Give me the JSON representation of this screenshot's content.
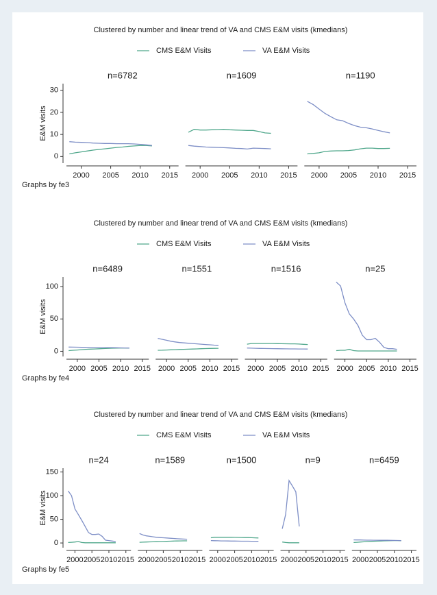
{
  "chart_data": [
    {
      "type": "line",
      "title": "Clustered by number and linear trend of VA and CMS E&M visits (kmedians)",
      "ylabel": "E&M visits",
      "note": "Graphs by fe3",
      "xlim": [
        1997.5,
        2016.5
      ],
      "xticks": [
        2000,
        2005,
        2010,
        2015
      ],
      "ylim": [
        -3,
        33
      ],
      "yticks": [
        0,
        10,
        20,
        30
      ],
      "panels": [
        {
          "title": "n=6782",
          "x": [
            1998,
            1999,
            2000,
            2001,
            2002,
            2003,
            2004,
            2005,
            2006,
            2007,
            2008,
            2009,
            2010,
            2011,
            2012
          ],
          "series": [
            {
              "name": "CMS E&M Visits",
              "color": "#4fa78b",
              "values": [
                1.2,
                1.7,
                2.1,
                2.5,
                2.9,
                3.2,
                3.5,
                3.8,
                4.1,
                4.3,
                4.6,
                4.8,
                5.0,
                5.0,
                4.8
              ]
            },
            {
              "name": "VA E&M Visits",
              "color": "#7d8ec6",
              "values": [
                6.7,
                6.5,
                6.4,
                6.3,
                6.1,
                6.0,
                5.9,
                5.9,
                5.8,
                5.8,
                5.8,
                5.7,
                5.5,
                5.3,
                5.0
              ]
            }
          ]
        },
        {
          "title": "n=1609",
          "x": [
            1998,
            1999,
            2000,
            2001,
            2002,
            2003,
            2004,
            2005,
            2006,
            2007,
            2008,
            2009,
            2010,
            2011,
            2012
          ],
          "series": [
            {
              "name": "CMS E&M Visits",
              "color": "#4fa78b",
              "values": [
                11,
                12.3,
                12,
                12,
                12.1,
                12.2,
                12.3,
                12.1,
                12,
                11.9,
                11.8,
                11.8,
                11.3,
                10.7,
                10.5
              ]
            },
            {
              "name": "VA E&M Visits",
              "color": "#7d8ec6",
              "values": [
                5,
                4.7,
                4.5,
                4.3,
                4.2,
                4.1,
                4.0,
                3.9,
                3.7,
                3.6,
                3.4,
                3.8,
                3.7,
                3.6,
                3.5
              ]
            }
          ]
        },
        {
          "title": "n=1190",
          "x": [
            1998,
            1999,
            2000,
            2001,
            2002,
            2003,
            2004,
            2005,
            2006,
            2007,
            2008,
            2009,
            2010,
            2011,
            2012
          ],
          "series": [
            {
              "name": "CMS E&M Visits",
              "color": "#4fa78b",
              "values": [
                1.2,
                1.4,
                1.7,
                2.3,
                2.5,
                2.6,
                2.6,
                2.7,
                3,
                3.5,
                3.8,
                3.8,
                3.6,
                3.6,
                3.7
              ]
            },
            {
              "name": "VA E&M Visits",
              "color": "#7d8ec6",
              "values": [
                25,
                23.5,
                21.5,
                19.5,
                18,
                16.6,
                16.2,
                15,
                14,
                13.3,
                13,
                12.5,
                11.8,
                11.2,
                10.7
              ]
            }
          ]
        }
      ]
    },
    {
      "type": "line",
      "title": "Clustered by number and linear trend of VA and CMS E&M visits (kmedians)",
      "ylabel": "E&M visits",
      "note": "Graphs by fe4",
      "xlim": [
        1997.5,
        2016.5
      ],
      "xticks": [
        2000,
        2005,
        2010,
        2015
      ],
      "ylim": [
        -8,
        115
      ],
      "yticks": [
        0,
        50,
        100
      ],
      "panels": [
        {
          "title": "n=6489",
          "x": [
            1998,
            1999,
            2000,
            2001,
            2002,
            2003,
            2004,
            2005,
            2006,
            2007,
            2008,
            2009,
            2010,
            2011,
            2012
          ],
          "series": [
            {
              "name": "CMS E&M Visits",
              "color": "#4fa78b",
              "values": [
                1,
                1.5,
                2,
                2.5,
                3,
                3.3,
                3.6,
                3.9,
                4.2,
                4.5,
                4.7,
                4.9,
                5,
                5,
                4.8
              ]
            },
            {
              "name": "VA E&M Visits",
              "color": "#7d8ec6",
              "values": [
                6.5,
                6.4,
                6.3,
                6.1,
                6,
                5.9,
                5.8,
                5.8,
                5.7,
                5.7,
                5.6,
                5.5,
                5.3,
                5.2,
                5.0
              ]
            }
          ]
        },
        {
          "title": "n=1551",
          "x": [
            1998,
            1999,
            2000,
            2001,
            2002,
            2003,
            2004,
            2005,
            2006,
            2007,
            2008,
            2009,
            2010,
            2011,
            2012
          ],
          "series": [
            {
              "name": "CMS E&M Visits",
              "color": "#4fa78b",
              "values": [
                1.5,
                1.7,
                2,
                2.3,
                2.5,
                2.8,
                3,
                3.2,
                3.5,
                3.7,
                4,
                4.2,
                4.4,
                4.5,
                4.6
              ]
            },
            {
              "name": "VA E&M Visits",
              "color": "#7d8ec6",
              "values": [
                20,
                18.5,
                17,
                15.5,
                14.5,
                13.5,
                13,
                12.5,
                12,
                11.5,
                11,
                10.5,
                10,
                9.5,
                9.2
              ]
            }
          ]
        },
        {
          "title": "n=1516",
          "x": [
            1998,
            1999,
            2000,
            2001,
            2002,
            2003,
            2004,
            2005,
            2006,
            2007,
            2008,
            2009,
            2010,
            2011,
            2012
          ],
          "series": [
            {
              "name": "CMS E&M Visits",
              "color": "#4fa78b",
              "values": [
                11,
                12,
                12,
                12,
                12,
                12,
                12,
                11.8,
                11.7,
                11.6,
                11.5,
                11.5,
                11.2,
                10.8,
                10.5
              ]
            },
            {
              "name": "VA E&M Visits",
              "color": "#7d8ec6",
              "values": [
                5,
                4.8,
                4.6,
                4.4,
                4.3,
                4.2,
                4.1,
                4,
                3.9,
                3.8,
                3.7,
                3.7,
                3.6,
                3.6,
                3.5
              ]
            }
          ]
        },
        {
          "title": "n=25",
          "x": [
            1998,
            1999,
            2000,
            2001,
            2002,
            2003,
            2004,
            2005,
            2006,
            2007,
            2008,
            2009,
            2010,
            2011,
            2012
          ],
          "series": [
            {
              "name": "CMS E&M Visits",
              "color": "#4fa78b",
              "values": [
                1,
                1.5,
                1.5,
                3,
                1,
                0.5,
                0.5,
                0.5,
                0.5,
                0.5,
                0.5,
                0.5,
                0.5,
                0.5,
                0.5
              ]
            },
            {
              "name": "VA E&M Visits",
              "color": "#7d8ec6",
              "values": [
                107,
                101,
                75,
                58,
                50,
                40,
                25,
                18,
                18,
                20,
                14,
                6,
                4,
                4,
                3
              ]
            }
          ]
        }
      ]
    },
    {
      "type": "line",
      "title": "Clustered by number and linear trend of VA and CMS E&M visits (kmedians)",
      "ylabel": "E&M visits",
      "note": "Graphs by fe5",
      "xlim": [
        1997.5,
        2016.5
      ],
      "xticks": [
        2000,
        2005,
        2010,
        2015
      ],
      "ylim": [
        -10,
        158
      ],
      "yticks": [
        0,
        50,
        100,
        150
      ],
      "panels": [
        {
          "title": "n=24",
          "x": [
            1998,
            1999,
            2000,
            2001,
            2002,
            2003,
            2004,
            2005,
            2006,
            2007,
            2008,
            2009,
            2010,
            2011,
            2012
          ],
          "series": [
            {
              "name": "CMS E&M Visits",
              "color": "#4fa78b",
              "values": [
                1,
                1.5,
                2,
                3,
                1,
                0.5,
                0.5,
                0.5,
                0.5,
                0.5,
                0.5,
                0.5,
                0.5,
                0.5,
                0.5
              ]
            },
            {
              "name": "VA E&M Visits",
              "color": "#7d8ec6",
              "values": [
                110,
                100,
                72,
                60,
                48,
                35,
                22,
                18,
                18,
                19,
                14,
                6,
                5,
                4,
                3
              ]
            }
          ]
        },
        {
          "title": "n=1589",
          "x": [
            1998,
            1999,
            2000,
            2001,
            2002,
            2003,
            2004,
            2005,
            2006,
            2007,
            2008,
            2009,
            2010,
            2011,
            2012
          ],
          "series": [
            {
              "name": "CMS E&M Visits",
              "color": "#4fa78b",
              "values": [
                1.5,
                1.7,
                2,
                2.3,
                2.5,
                2.8,
                3,
                3.2,
                3.5,
                3.7,
                4,
                4.2,
                4.4,
                4.5,
                4.5
              ]
            },
            {
              "name": "VA E&M Visits",
              "color": "#7d8ec6",
              "values": [
                20,
                17,
                15,
                14,
                13,
                12,
                11.5,
                11,
                10.5,
                10,
                9.5,
                9,
                8.5,
                8.2,
                8
              ]
            }
          ]
        },
        {
          "title": "n=1500",
          "x": [
            1998,
            1999,
            2000,
            2001,
            2002,
            2003,
            2004,
            2005,
            2006,
            2007,
            2008,
            2009,
            2010,
            2011,
            2012
          ],
          "series": [
            {
              "name": "CMS E&M Visits",
              "color": "#4fa78b",
              "values": [
                11,
                12,
                12,
                12,
                12,
                12,
                12,
                11.8,
                11.7,
                11.6,
                11.5,
                11.5,
                11.2,
                10.8,
                10.5
              ]
            },
            {
              "name": "VA E&M Visits",
              "color": "#7d8ec6",
              "values": [
                5,
                4.8,
                4.6,
                4.4,
                4.3,
                4.2,
                4.1,
                4,
                3.9,
                3.8,
                3.7,
                3.7,
                3.6,
                3.6,
                3.5
              ]
            }
          ]
        },
        {
          "title": "n=9",
          "x": [
            1998,
            1999,
            2000,
            2001,
            2002,
            2003,
            2004,
            2005,
            2006,
            2007,
            2008,
            2009,
            2010,
            2011,
            2012
          ],
          "series": [
            {
              "name": "CMS E&M Visits",
              "color": "#4fa78b",
              "values": [
                2,
                1,
                0.5,
                0.5,
                0.5,
                0.5,
                null,
                null,
                null,
                null,
                null,
                null,
                null,
                null,
                null
              ]
            },
            {
              "name": "VA E&M Visits",
              "color": "#7d8ec6",
              "values": [
                30,
                60,
                132,
                120,
                108,
                35,
                null,
                null,
                null,
                null,
                null,
                null,
                null,
                null,
                null
              ]
            }
          ]
        },
        {
          "title": "n=6459",
          "x": [
            1998,
            1999,
            2000,
            2001,
            2002,
            2003,
            2004,
            2005,
            2006,
            2007,
            2008,
            2009,
            2010,
            2011,
            2012
          ],
          "series": [
            {
              "name": "CMS E&M Visits",
              "color": "#4fa78b",
              "values": [
                1,
                1.5,
                2,
                2.5,
                3,
                3.3,
                3.6,
                3.9,
                4.2,
                4.5,
                4.7,
                4.9,
                5,
                5,
                4.8
              ]
            },
            {
              "name": "VA E&M Visits",
              "color": "#7d8ec6",
              "values": [
                6.5,
                6.4,
                6.3,
                6.1,
                6,
                5.9,
                5.8,
                5.8,
                5.7,
                5.7,
                5.6,
                5.5,
                5.3,
                5.2,
                5.0
              ]
            }
          ]
        }
      ]
    }
  ]
}
